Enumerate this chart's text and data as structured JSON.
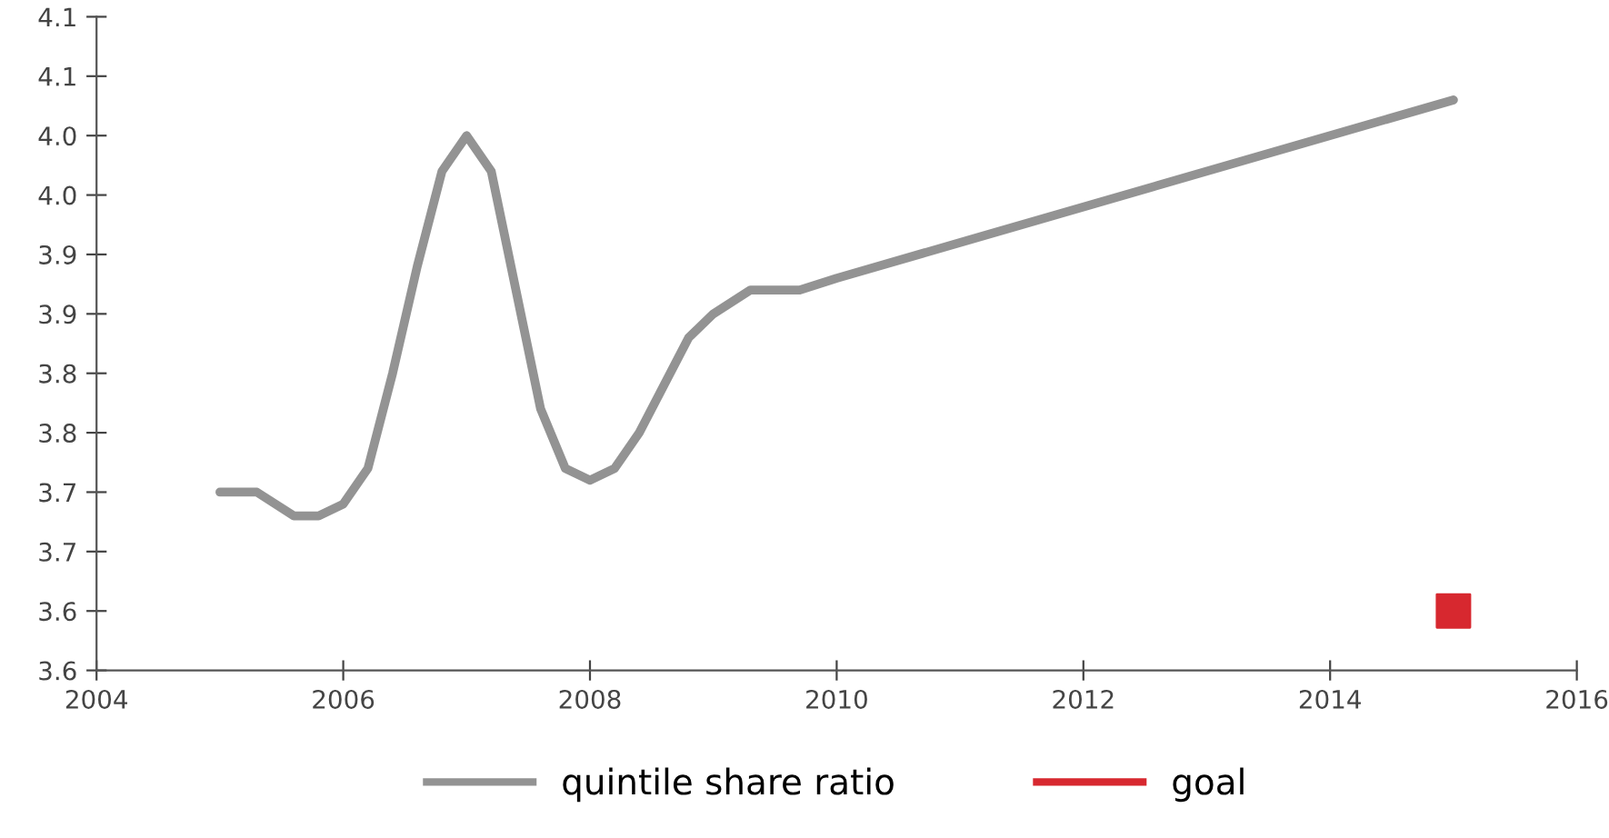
{
  "chart_data": {
    "type": "line",
    "series": [
      {
        "name": "quintile share ratio",
        "color": "#939393",
        "x": [
          2005,
          2005.3,
          2005.6,
          2005.8,
          2006,
          2006.2,
          2006.4,
          2006.6,
          2006.8,
          2007,
          2007.2,
          2007.4,
          2007.6,
          2007.8,
          2008,
          2008.2,
          2008.4,
          2008.6,
          2008.8,
          2009,
          2009.3,
          2009.7,
          2010,
          2015
        ],
        "values": [
          3.7,
          3.7,
          3.68,
          3.68,
          3.69,
          3.72,
          3.8,
          3.89,
          3.97,
          4.0,
          3.97,
          3.87,
          3.77,
          3.72,
          3.71,
          3.72,
          3.75,
          3.79,
          3.83,
          3.85,
          3.87,
          3.87,
          3.88,
          4.03
        ]
      },
      {
        "name": "goal",
        "color": "#d7282f",
        "type": "scatter",
        "marker": "square",
        "x": [
          2015
        ],
        "values": [
          3.6
        ]
      }
    ],
    "xlim": [
      2004,
      2016
    ],
    "xticks": [
      2004,
      2006,
      2008,
      2010,
      2012,
      2014,
      2016
    ],
    "ylim": [
      3.55,
      4.1
    ],
    "yticks": [
      {
        "value": 3.55,
        "label": "3.6"
      },
      3.6,
      {
        "value": 3.65,
        "label": "3.7"
      },
      3.7,
      {
        "value": 3.75,
        "label": "3.8"
      },
      3.8,
      {
        "value": 3.85,
        "label": "3.9"
      },
      3.9,
      {
        "value": 3.95,
        "label": "4.0"
      },
      {
        "value": 4.0,
        "label": "4.0"
      },
      {
        "value": 4.05,
        "label": "4.1"
      },
      4.1
    ],
    "legend": "bottom",
    "grid": false
  }
}
